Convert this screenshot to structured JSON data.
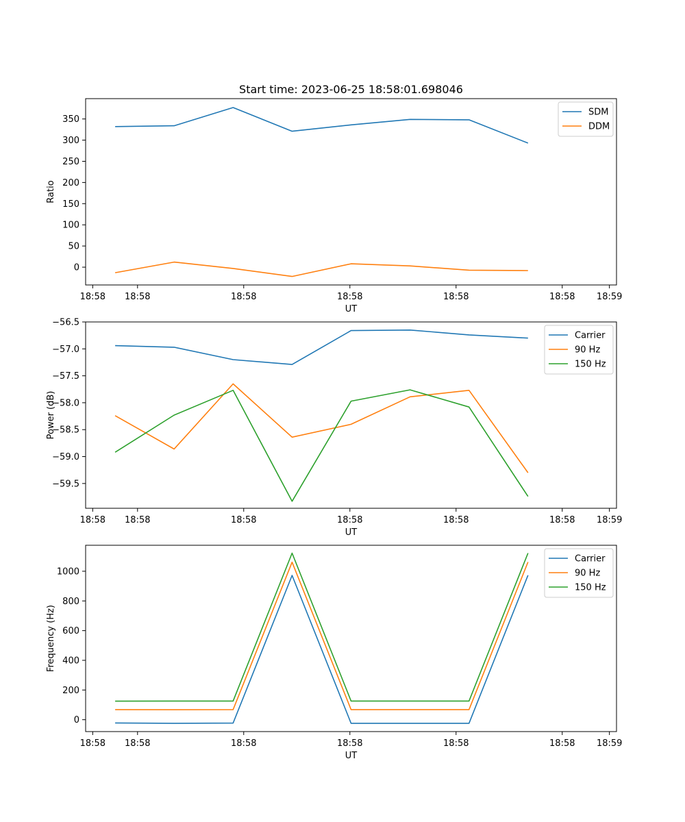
{
  "chart_data": [
    {
      "type": "line",
      "title": "Start time: 2023-06-25 18:58:01.698046",
      "xlabel": "UT",
      "ylabel": "Ratio",
      "x": [
        0,
        1,
        2,
        3,
        4,
        5,
        6,
        7
      ],
      "xlim": [
        -0.5,
        8.5
      ],
      "xticks": [
        -0.38,
        0.38,
        2.18,
        3.98,
        5.78,
        7.58,
        8.38
      ],
      "xtick_labels": [
        "18:58",
        "18:58",
        "18:58",
        "18:58",
        "18:58",
        "18:58",
        "18:59"
      ],
      "ylim": [
        -42,
        398
      ],
      "yticks": [
        0,
        50,
        100,
        150,
        200,
        250,
        300,
        350
      ],
      "ytick_labels": [
        "0",
        "50",
        "100",
        "150",
        "200",
        "250",
        "300",
        "350"
      ],
      "legend": "top-right",
      "series": [
        {
          "name": "SDM",
          "color": "#1f77b4",
          "values": [
            332,
            334,
            377,
            321,
            336,
            349,
            348,
            293
          ]
        },
        {
          "name": "DDM",
          "color": "#ff7f0e",
          "values": [
            -13,
            12,
            -3,
            -22,
            8,
            3,
            -7,
            -8
          ]
        }
      ]
    },
    {
      "type": "line",
      "xlabel": "UT",
      "ylabel": "Power (dB)",
      "x": [
        0,
        1,
        2,
        3,
        4,
        5,
        6,
        7
      ],
      "xlim": [
        -0.5,
        8.5
      ],
      "xticks": [
        -0.38,
        0.38,
        2.18,
        3.98,
        5.78,
        7.58,
        8.38
      ],
      "xtick_labels": [
        "18:58",
        "18:58",
        "18:58",
        "18:58",
        "18:58",
        "18:58",
        "18:59"
      ],
      "ylim": [
        -59.96,
        -56.5
      ],
      "yticks": [
        -59.5,
        -59.0,
        -58.5,
        -58.0,
        -57.5,
        -57.0,
        -56.5
      ],
      "ytick_labels": [
        "−59.5",
        "−59.0",
        "−58.5",
        "−58.0",
        "−57.5",
        "−57.0",
        "−56.5"
      ],
      "legend": "top-right",
      "series": [
        {
          "name": "Carrier",
          "color": "#1f77b4",
          "values": [
            -56.94,
            -56.97,
            -57.2,
            -57.29,
            -56.66,
            -56.65,
            -56.74,
            -56.8
          ]
        },
        {
          "name": "90 Hz",
          "color": "#ff7f0e",
          "values": [
            -58.24,
            -58.86,
            -57.65,
            -58.64,
            -58.4,
            -57.89,
            -57.77,
            -59.3
          ]
        },
        {
          "name": "150 Hz",
          "color": "#2ca02c",
          "values": [
            -58.92,
            -58.23,
            -57.77,
            -59.83,
            -57.97,
            -57.76,
            -58.08,
            -59.74
          ]
        }
      ]
    },
    {
      "type": "line",
      "xlabel": "UT",
      "ylabel": "Frequency (Hz)",
      "x": [
        0,
        1,
        2,
        3,
        4,
        5,
        6,
        7
      ],
      "xlim": [
        -0.5,
        8.5
      ],
      "xticks": [
        -0.38,
        0.38,
        2.18,
        3.98,
        5.78,
        7.58,
        8.38
      ],
      "xtick_labels": [
        "18:58",
        "18:58",
        "18:58",
        "18:58",
        "18:58",
        "18:58",
        "18:59"
      ],
      "ylim": [
        -80,
        1175
      ],
      "yticks": [
        0,
        200,
        400,
        600,
        800,
        1000
      ],
      "ytick_labels": [
        "0",
        "200",
        "400",
        "600",
        "800",
        "1000"
      ],
      "legend": "top-right",
      "series": [
        {
          "name": "Carrier",
          "color": "#1f77b4",
          "values": [
            -22,
            -24,
            -23,
            972,
            -24,
            -24,
            -24,
            973
          ]
        },
        {
          "name": "90 Hz",
          "color": "#ff7f0e",
          "values": [
            68,
            67,
            68,
            1061,
            68,
            68,
            68,
            1062
          ]
        },
        {
          "name": "150 Hz",
          "color": "#2ca02c",
          "values": [
            125,
            126,
            126,
            1122,
            126,
            126,
            126,
            1122
          ]
        }
      ]
    }
  ]
}
